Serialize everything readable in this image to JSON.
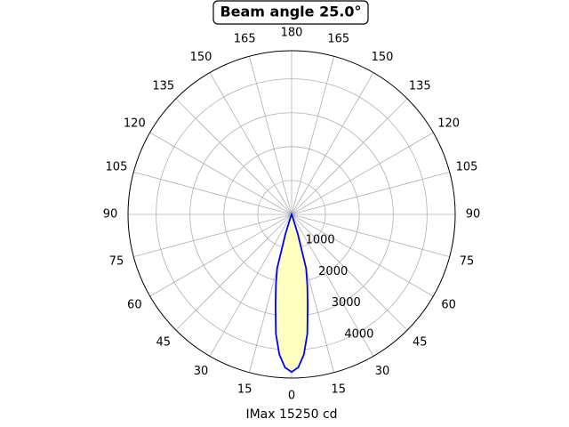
{
  "chart_data": {
    "type": "polar",
    "title": "Beam angle 25.0°",
    "xlabel": "IMax 15250 cd",
    "x": [
      -22.5,
      -20,
      -17.5,
      -15,
      -12.5,
      -10,
      -7.5,
      -5,
      -2.5,
      0,
      2.5,
      5,
      7.5,
      10,
      12.5,
      15,
      17.5,
      20,
      22.5
    ],
    "values": [
      0,
      100,
      600,
      1650,
      2150,
      2730,
      3550,
      4150,
      4520,
      4650,
      4520,
      4150,
      3550,
      2730,
      2150,
      1650,
      600,
      100,
      0
    ],
    "color": "#0000ff",
    "fill": "#ffffc0",
    "xlim": [
      0,
      360
    ],
    "xticks": [
      0,
      15,
      30,
      45,
      60,
      75,
      90,
      105,
      120,
      135,
      150,
      165,
      180,
      {
        "value": 195,
        "label": "165"
      },
      {
        "value": 210,
        "label": "150"
      },
      {
        "value": 225,
        "label": "135"
      },
      {
        "value": 240,
        "label": "120"
      },
      {
        "value": 255,
        "label": "105"
      },
      {
        "value": 270,
        "label": "90"
      },
      {
        "value": 285,
        "label": "75"
      },
      {
        "value": 300,
        "label": "60"
      },
      {
        "value": 315,
        "label": "45"
      },
      {
        "value": 330,
        "label": "30"
      },
      {
        "value": 345,
        "label": "15"
      }
    ],
    "ylim": [
      0,
      4830
    ],
    "yticks": [
      1000,
      2000,
      3000,
      4000
    ],
    "grid": true
  }
}
